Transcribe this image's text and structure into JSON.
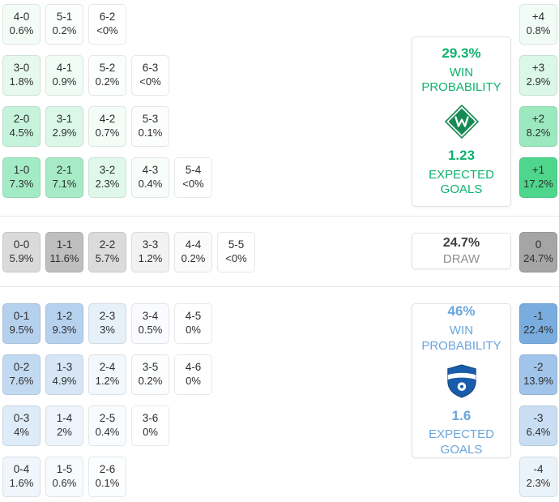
{
  "chart_data": {
    "type": "heatmap",
    "title": "Correct score probability matrix with win/draw probabilities and expected goals",
    "legend_position": "right",
    "accent_colors": {
      "home": "#0eb26e",
      "draw": "#8f8f8f",
      "away": "#6aa6db"
    },
    "icons": {
      "home_team_logo": "green-diamond-club-crest",
      "away_team_logo": "blue-shield-club-crest"
    },
    "sections": [
      {
        "id": "home",
        "rows": [
          [
            {
              "score": "4-0",
              "prob": "0.6%",
              "bg": "#f4fcf8"
            },
            {
              "score": "5-1",
              "prob": "0.2%",
              "bg": "#fbfefc"
            },
            {
              "score": "6-2",
              "prob": "<0%",
              "bg": "#ffffff"
            }
          ],
          [
            {
              "score": "3-0",
              "prob": "1.8%",
              "bg": "#e6f9ee"
            },
            {
              "score": "4-1",
              "prob": "0.9%",
              "bg": "#f1fcf6"
            },
            {
              "score": "5-2",
              "prob": "0.2%",
              "bg": "#fbfefc"
            },
            {
              "score": "6-3",
              "prob": "<0%",
              "bg": "#ffffff"
            }
          ],
          [
            {
              "score": "2-0",
              "prob": "4.5%",
              "bg": "#c6f3dc"
            },
            {
              "score": "3-1",
              "prob": "2.9%",
              "bg": "#daf7e8"
            },
            {
              "score": "4-2",
              "prob": "0.7%",
              "bg": "#f3fcf7"
            },
            {
              "score": "5-3",
              "prob": "0.1%",
              "bg": "#fcfefd"
            }
          ],
          [
            {
              "score": "1-0",
              "prob": "7.3%",
              "bg": "#a3ebc5"
            },
            {
              "score": "2-1",
              "prob": "7.1%",
              "bg": "#a6ebc6"
            },
            {
              "score": "3-2",
              "prob": "2.3%",
              "bg": "#e0f8eb"
            },
            {
              "score": "4-3",
              "prob": "0.4%",
              "bg": "#f8fdfa"
            },
            {
              "score": "5-4",
              "prob": "<0%",
              "bg": "#ffffff"
            }
          ]
        ],
        "margins": [
          {
            "diff": "+4",
            "prob": "0.8%",
            "bg": "#f2fcf7"
          },
          {
            "diff": "+3",
            "prob": "2.9%",
            "bg": "#daf7e8"
          },
          {
            "diff": "+2",
            "prob": "8.2%",
            "bg": "#9ce9c0"
          },
          {
            "diff": "+1",
            "prob": "17.2%",
            "bg": "#4fd68d"
          }
        ],
        "summary": {
          "percent": "29.3%",
          "percent_label": "WIN PROBABILITY",
          "expected": "1.23",
          "expected_label": "EXPECTED GOALS"
        }
      },
      {
        "id": "draw",
        "rows": [
          [
            {
              "score": "0-0",
              "prob": "5.9%",
              "bg": "#dadada"
            },
            {
              "score": "1-1",
              "prob": "11.6%",
              "bg": "#bfbfbf"
            },
            {
              "score": "2-2",
              "prob": "5.7%",
              "bg": "#dbdbdb"
            },
            {
              "score": "3-3",
              "prob": "1.2%",
              "bg": "#f2f2f2"
            },
            {
              "score": "4-4",
              "prob": "0.2%",
              "bg": "#fbfbfb"
            },
            {
              "score": "5-5",
              "prob": "<0%",
              "bg": "#ffffff"
            }
          ]
        ],
        "margins": [
          {
            "diff": "0",
            "prob": "24.7%",
            "bg": "#a5a5a5"
          }
        ],
        "summary": {
          "percent": "24.7%",
          "percent_label": "DRAW"
        }
      },
      {
        "id": "away",
        "rows": [
          [
            {
              "score": "0-1",
              "prob": "9.5%",
              "bg": "#b5d1ee"
            },
            {
              "score": "1-2",
              "prob": "9.3%",
              "bg": "#b6d1ee"
            },
            {
              "score": "2-3",
              "prob": "3%",
              "bg": "#e6f0f9"
            },
            {
              "score": "3-4",
              "prob": "0.5%",
              "bg": "#f9fbfe"
            },
            {
              "score": "4-5",
              "prob": "0%",
              "bg": "#ffffff"
            }
          ],
          [
            {
              "score": "0-2",
              "prob": "7.6%",
              "bg": "#c2daf1"
            },
            {
              "score": "1-3",
              "prob": "4.9%",
              "bg": "#d6e6f6"
            },
            {
              "score": "2-4",
              "prob": "1.2%",
              "bg": "#f3f8fc"
            },
            {
              "score": "3-5",
              "prob": "0.2%",
              "bg": "#fbfdfe"
            },
            {
              "score": "4-6",
              "prob": "0%",
              "bg": "#ffffff"
            }
          ],
          [
            {
              "score": "0-3",
              "prob": "4%",
              "bg": "#deebf8"
            },
            {
              "score": "1-4",
              "prob": "2%",
              "bg": "#edf4fb"
            },
            {
              "score": "2-5",
              "prob": "0.4%",
              "bg": "#f9fcfe"
            },
            {
              "score": "3-6",
              "prob": "0%",
              "bg": "#ffffff"
            }
          ],
          [
            {
              "score": "0-4",
              "prob": "1.6%",
              "bg": "#f0f6fc"
            },
            {
              "score": "1-5",
              "prob": "0.6%",
              "bg": "#f8fbfe"
            },
            {
              "score": "2-6",
              "prob": "0.1%",
              "bg": "#fcfdff"
            }
          ]
        ],
        "margins": [
          {
            "diff": "-1",
            "prob": "22.4%",
            "bg": "#79ade0"
          },
          {
            "diff": "-2",
            "prob": "13.9%",
            "bg": "#a1c5ea"
          },
          {
            "diff": "-3",
            "prob": "6.4%",
            "bg": "#c9def2"
          },
          {
            "diff": "-4",
            "prob": "2.3%",
            "bg": "#ebf3fa"
          }
        ],
        "summary": {
          "percent": "46%",
          "percent_label": "WIN PROBABILITY",
          "expected": "1.6",
          "expected_label": "EXPECTED GOALS"
        }
      }
    ]
  }
}
